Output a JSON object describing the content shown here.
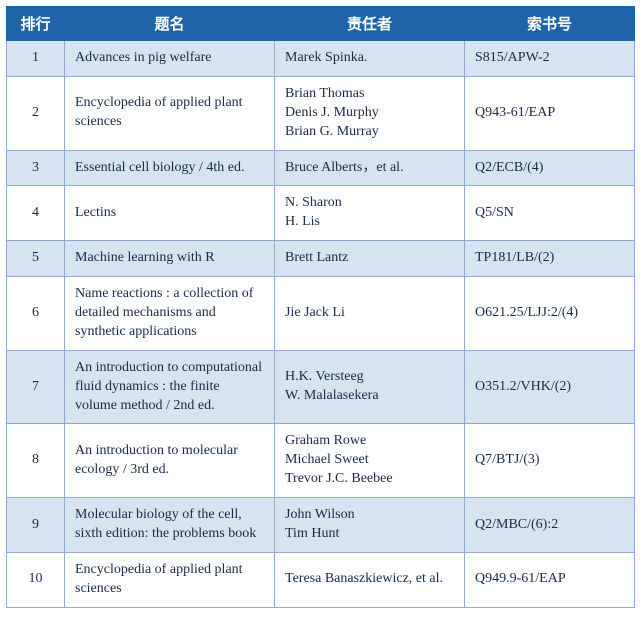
{
  "table": {
    "type": "table",
    "header_bg": "#1f63a8",
    "header_fg": "#ffffff",
    "border_color": "#8faccf",
    "row_odd_bg": "#d6e3f0",
    "row_even_bg": "#ffffff",
    "cell_fg": "#1a2a4a",
    "columns": [
      {
        "key": "rank",
        "label": "排行"
      },
      {
        "key": "title",
        "label": "题名"
      },
      {
        "key": "author",
        "label": "责任者"
      },
      {
        "key": "callno",
        "label": "索书号"
      }
    ],
    "rows": [
      {
        "rank": "1",
        "title": "Advances in pig welfare",
        "author": "Marek Spinka.",
        "callno": "S815/APW-2"
      },
      {
        "rank": "2",
        "title": "Encyclopedia of applied plant sciences",
        "author": "Brian Thomas\nDenis J. Murphy\nBrian G. Murray",
        "callno": "Q943-61/EAP"
      },
      {
        "rank": "3",
        "title": "Essential cell biology / 4th ed.",
        "author": "Bruce Alberts，et al.",
        "callno": "Q2/ECB/(4)"
      },
      {
        "rank": "4",
        "title": "Lectins",
        "author": "N. Sharon\nH. Lis",
        "callno": "Q5/SN"
      },
      {
        "rank": "5",
        "title": "Machine learning with R",
        "author": "Brett Lantz",
        "callno": "TP181/LB/(2)"
      },
      {
        "rank": "6",
        "title": "Name reactions : a collection of detailed mechanisms and synthetic applications",
        "author": "Jie Jack Li",
        "callno": "O621.25/LJJ:2/(4)"
      },
      {
        "rank": "7",
        "title": "An introduction to computational fluid dynamics : the finite volume method / 2nd ed.",
        "author": "H.K. Versteeg\nW. Malalasekera",
        "callno": "O351.2/VHK/(2)"
      },
      {
        "rank": "8",
        "title": "An introduction to molecular ecology / 3rd ed.",
        "author": "Graham Rowe\nMichael Sweet\nTrevor J.C. Beebee",
        "callno": "Q7/BTJ/(3)"
      },
      {
        "rank": "9",
        "title": "Molecular biology of the cell,\nsixth edition: the problems book",
        "author": "John Wilson\nTim Hunt",
        "callno": "Q2/MBC/(6):2"
      },
      {
        "rank": "10",
        "title": "Encyclopedia of applied plant sciences",
        "author": "Teresa Banaszkiewicz, et al.",
        "callno": "Q949.9-61/EAP"
      }
    ]
  }
}
